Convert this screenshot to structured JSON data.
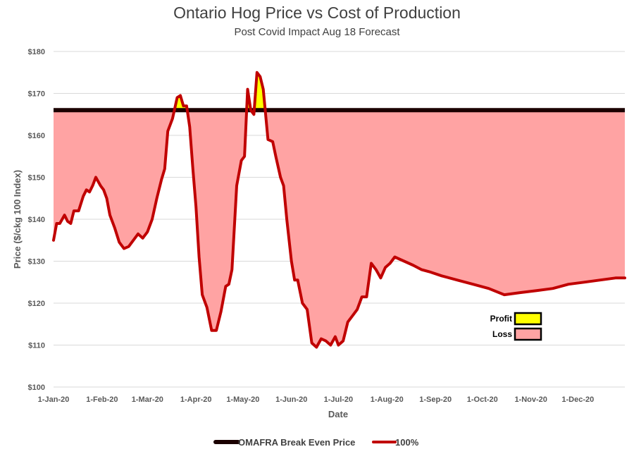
{
  "chart_data": {
    "type": "area",
    "title": "Ontario Hog Price vs Cost of Production",
    "subtitle": "Post Covid Impact Aug 18 Forecast",
    "xlabel": "Date",
    "ylabel": "Price ($/ckg 100 Index)",
    "ylim": [
      100,
      180
    ],
    "yticks": [
      "$100",
      "$110",
      "$120",
      "$130",
      "$140",
      "$150",
      "$160",
      "$170",
      "$180"
    ],
    "ytick_values": [
      100,
      110,
      120,
      130,
      140,
      150,
      160,
      170,
      180
    ],
    "xticks": [
      "1-Jan-20",
      "1-Feb-20",
      "1-Mar-20",
      "1-Apr-20",
      "1-May-20",
      "1-Jun-20",
      "1-Jul-20",
      "1-Aug-20",
      "1-Sep-20",
      "1-Oct-20",
      "1-Nov-20",
      "1-Dec-20"
    ],
    "xtick_dates": [
      "2020-01-01",
      "2020-02-01",
      "2020-03-01",
      "2020-04-01",
      "2020-05-01",
      "2020-06-01",
      "2020-07-01",
      "2020-08-01",
      "2020-09-01",
      "2020-10-01",
      "2020-11-01",
      "2020-12-01"
    ],
    "xlim": [
      "2020-01-01",
      "2020-12-31"
    ],
    "grid": true,
    "legend_position": "bottom",
    "series": [
      {
        "name": "OMAFRA Break Even Price",
        "color": "#1a0000",
        "x": [
          "2020-01-01",
          "2020-12-31"
        ],
        "values": [
          166,
          166
        ]
      },
      {
        "name": "100%",
        "color": "#c00000",
        "x": [
          "2020-01-01",
          "2020-01-03",
          "2020-01-05",
          "2020-01-08",
          "2020-01-10",
          "2020-01-12",
          "2020-01-14",
          "2020-01-17",
          "2020-01-20",
          "2020-01-22",
          "2020-01-24",
          "2020-01-26",
          "2020-01-28",
          "2020-01-31",
          "2020-02-02",
          "2020-02-04",
          "2020-02-06",
          "2020-02-09",
          "2020-02-12",
          "2020-02-15",
          "2020-02-18",
          "2020-02-21",
          "2020-02-24",
          "2020-02-27",
          "2020-03-01",
          "2020-03-04",
          "2020-03-07",
          "2020-03-10",
          "2020-03-12",
          "2020-03-14",
          "2020-03-17",
          "2020-03-20",
          "2020-03-22",
          "2020-03-24",
          "2020-03-26",
          "2020-03-28",
          "2020-03-30",
          "2020-04-01",
          "2020-04-03",
          "2020-04-05",
          "2020-04-08",
          "2020-04-11",
          "2020-04-14",
          "2020-04-17",
          "2020-04-20",
          "2020-04-22",
          "2020-04-24",
          "2020-04-27",
          "2020-04-30",
          "2020-05-02",
          "2020-05-04",
          "2020-05-06",
          "2020-05-08",
          "2020-05-10",
          "2020-05-12",
          "2020-05-14",
          "2020-05-17",
          "2020-05-20",
          "2020-05-22",
          "2020-05-25",
          "2020-05-27",
          "2020-05-29",
          "2020-06-01",
          "2020-06-03",
          "2020-06-05",
          "2020-06-08",
          "2020-06-11",
          "2020-06-14",
          "2020-06-17",
          "2020-06-20",
          "2020-06-23",
          "2020-06-26",
          "2020-06-29",
          "2020-07-01",
          "2020-07-04",
          "2020-07-07",
          "2020-07-10",
          "2020-07-13",
          "2020-07-16",
          "2020-07-19",
          "2020-07-22",
          "2020-07-25",
          "2020-07-28",
          "2020-07-31",
          "2020-08-03",
          "2020-08-06",
          "2020-08-09",
          "2020-08-12",
          "2020-08-15",
          "2020-08-18",
          "2020-08-23",
          "2020-08-28",
          "2020-09-05",
          "2020-09-15",
          "2020-09-25",
          "2020-10-05",
          "2020-10-15",
          "2020-10-25",
          "2020-11-05",
          "2020-11-15",
          "2020-11-25",
          "2020-12-05",
          "2020-12-15",
          "2020-12-25",
          "2020-12-31"
        ],
        "values": [
          135,
          139,
          139,
          141,
          139.5,
          139,
          142,
          142,
          145.5,
          147,
          146.5,
          148,
          150,
          148,
          147,
          145,
          141,
          138,
          134.5,
          133,
          133.5,
          135,
          136.5,
          135.5,
          137,
          140,
          145,
          149.5,
          152,
          161,
          164,
          169,
          169.5,
          167,
          167,
          162,
          152,
          143,
          131,
          122,
          119,
          113.5,
          113.5,
          118,
          124,
          124.5,
          128,
          148,
          154,
          155,
          171,
          166,
          165,
          175,
          174,
          171,
          159,
          158.5,
          155,
          150,
          148,
          140,
          130,
          125.5,
          125.5,
          120,
          118.5,
          110.5,
          109.5,
          111.5,
          111,
          110,
          112,
          110,
          111,
          115.5,
          117,
          118.5,
          121.5,
          121.5,
          129.5,
          128,
          126,
          128.5,
          129.5,
          131,
          130.5,
          130,
          129.5,
          129,
          128,
          127.5,
          126.5,
          125.5,
          124.5,
          123.5,
          122,
          122.5,
          123,
          123.5,
          124.5,
          125,
          125.5,
          126,
          126
        ]
      }
    ],
    "fills": {
      "profit_color": "#ffff00",
      "loss_color": "#ffa3a3"
    },
    "inset_legend": [
      {
        "label": "Profit",
        "color": "#ffff00"
      },
      {
        "label": "Loss",
        "color": "#ffa3a3"
      }
    ]
  }
}
